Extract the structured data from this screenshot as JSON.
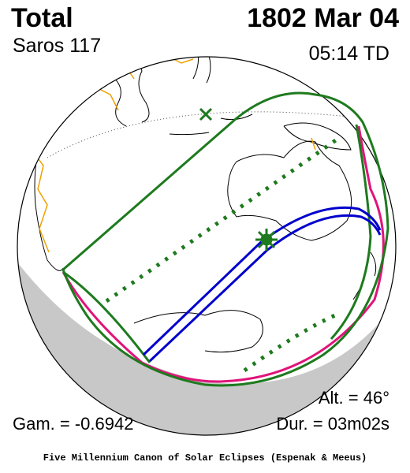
{
  "header": {
    "eclipse_type": "Total",
    "date": "1802 Mar 04",
    "saros": "Saros 117",
    "time": "05:14 TD"
  },
  "footer": {
    "altitude": "Alt. = 46°",
    "gamma": "Gam. = -0.6942",
    "duration": "Dur. = 03m02s",
    "credit": "Five Millennium Canon of Solar Eclipses (Espenak & Meeus)"
  },
  "colors": {
    "penumbra_limits": "#1e7a1e",
    "central_path": "#0000cc",
    "sunrise_sunset_curve": "#e0147a",
    "coastline": "#000000",
    "political_borders": "#f0a000",
    "night_side": "#c8c8c8"
  },
  "markers": {
    "greatest_eclipse": "green-asterisk",
    "subsolar_point": "green-x"
  }
}
